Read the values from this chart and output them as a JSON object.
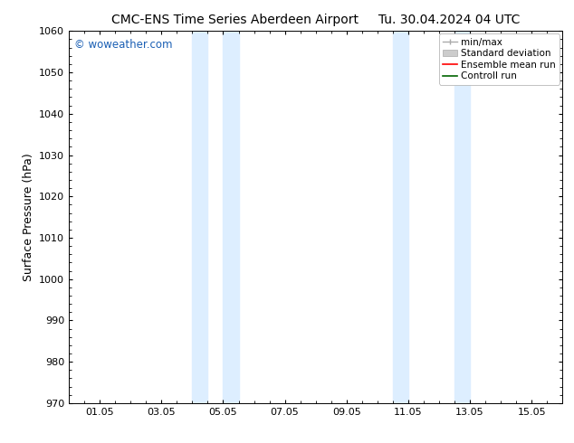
{
  "title_left": "CMC-ENS Time Series Aberdeen Airport",
  "title_right": "Tu. 30.04.2024 04 UTC",
  "ylabel": "Surface Pressure (hPa)",
  "ylim": [
    970,
    1060
  ],
  "yticks": [
    970,
    980,
    990,
    1000,
    1010,
    1020,
    1030,
    1040,
    1050,
    1060
  ],
  "xtick_labels": [
    "01.05",
    "03.05",
    "05.05",
    "07.05",
    "09.05",
    "11.05",
    "13.05",
    "15.05"
  ],
  "xtick_positions": [
    1,
    3,
    5,
    7,
    9,
    11,
    13,
    15
  ],
  "xlim": [
    0,
    16
  ],
  "shaded_regions": [
    {
      "xmin": 4.0,
      "xmax": 4.5
    },
    {
      "xmin": 5.0,
      "xmax": 5.5
    },
    {
      "xmin": 10.5,
      "xmax": 11.0
    },
    {
      "xmin": 12.5,
      "xmax": 13.0
    }
  ],
  "shade_color": "#ddeeff",
  "watermark_text": "© woweather.com",
  "watermark_color": "#1a5fb4",
  "legend_entries": [
    "min/max",
    "Standard deviation",
    "Ensemble mean run",
    "Controll run"
  ],
  "background_color": "#ffffff",
  "title_fontsize": 10,
  "axis_label_fontsize": 9,
  "tick_fontsize": 8,
  "legend_fontsize": 7.5
}
